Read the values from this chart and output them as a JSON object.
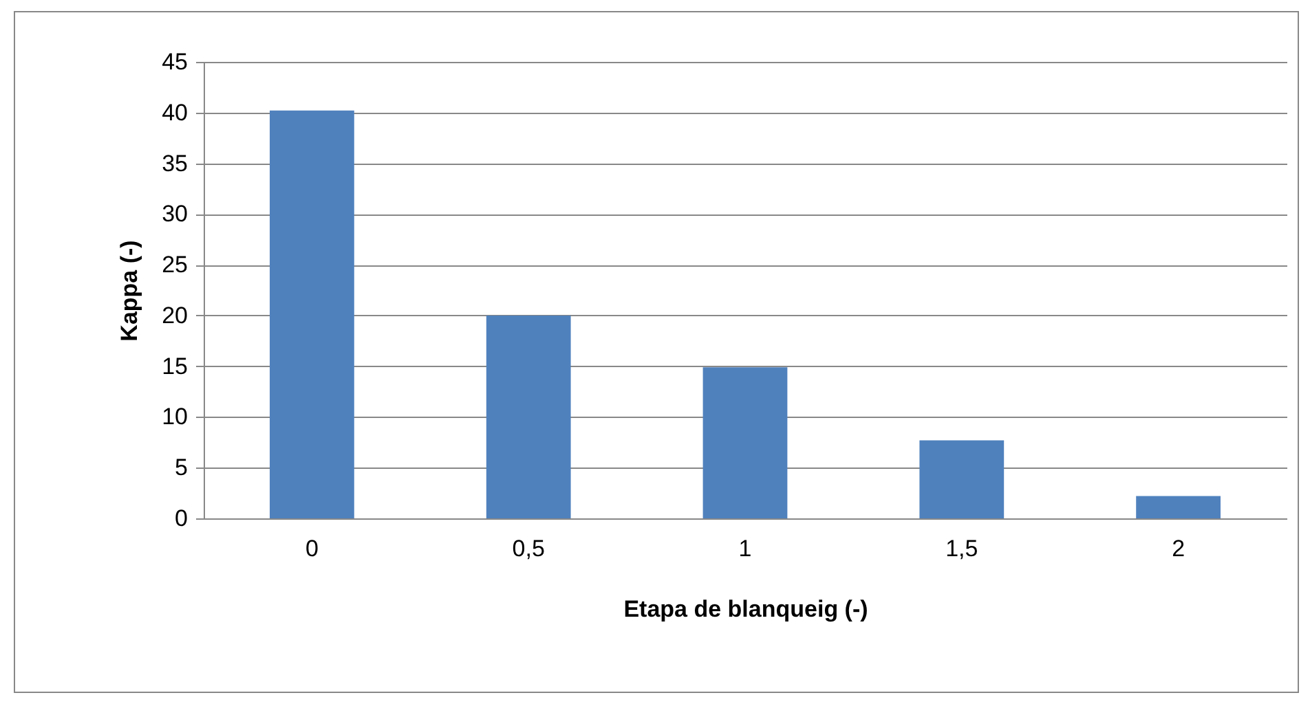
{
  "chart_data": {
    "type": "bar",
    "xlabel": "Etapa de blanqueig (-)",
    "ylabel": "Kappa (-)",
    "categories": [
      "0",
      "0,5",
      "1",
      "1,5",
      "2"
    ],
    "series": [
      {
        "color": "#4f81bd",
        "values": [
          40.2,
          20,
          14.9,
          7.7,
          2.2
        ]
      }
    ],
    "ylim": [
      0,
      45
    ],
    "yticks": [
      0,
      5,
      10,
      15,
      20,
      25,
      30,
      35,
      40,
      45
    ],
    "grid": "y"
  }
}
